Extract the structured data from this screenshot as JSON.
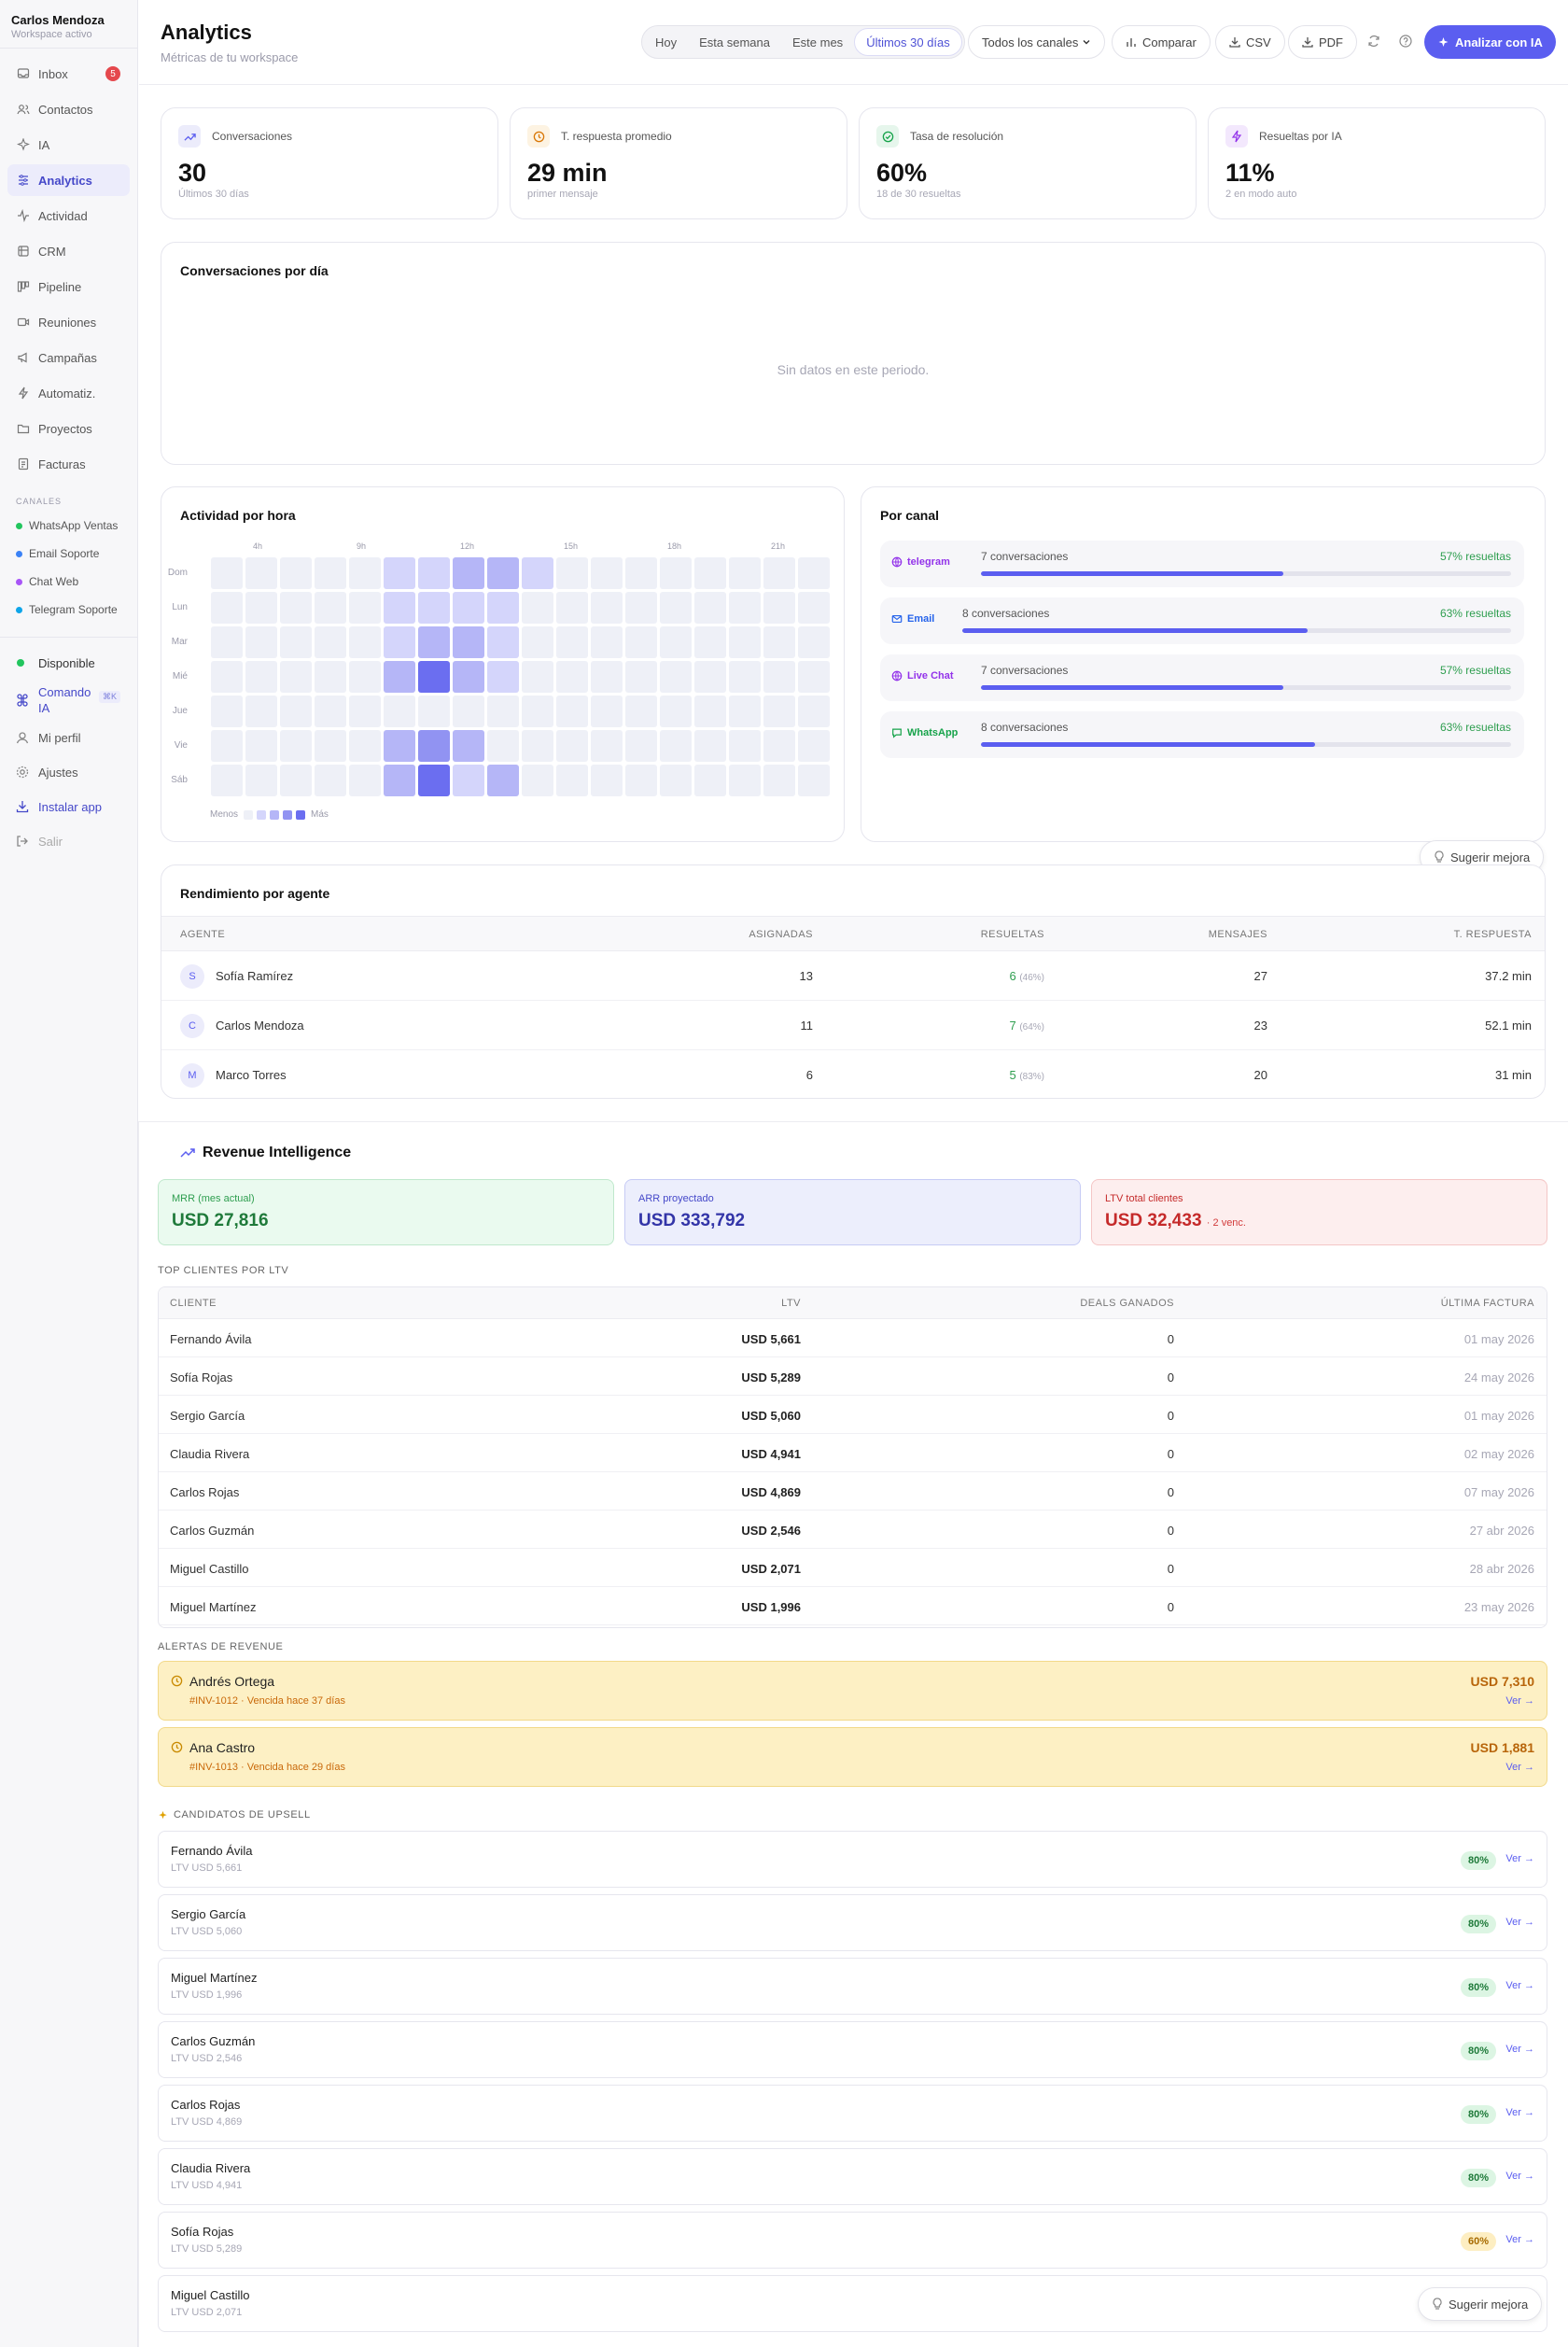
{
  "sidebar": {
    "user_name": "Carlos Mendoza",
    "workspace": "Workspace activo",
    "nav": [
      {
        "label": "Inbox",
        "icon": "inbox-icon",
        "badge": "5"
      },
      {
        "label": "Contactos",
        "icon": "contacts-icon"
      },
      {
        "label": "IA",
        "icon": "sparkle-icon"
      },
      {
        "label": "Analytics",
        "icon": "analytics-icon",
        "active": true
      },
      {
        "label": "Actividad",
        "icon": "activity-icon"
      },
      {
        "label": "CRM",
        "icon": "crm-icon"
      },
      {
        "label": "Pipeline",
        "icon": "pipeline-icon"
      },
      {
        "label": "Reuniones",
        "icon": "video-icon"
      },
      {
        "label": "Campañas",
        "icon": "megaphone-icon"
      },
      {
        "label": "Automatiz.",
        "icon": "bolt-icon"
      },
      {
        "label": "Proyectos",
        "icon": "folder-icon"
      },
      {
        "label": "Facturas",
        "icon": "invoice-icon"
      }
    ],
    "channels_label": "CANALES",
    "channels": [
      {
        "label": "WhatsApp Ventas",
        "color": "#22c55e"
      },
      {
        "label": "Email Soporte",
        "color": "#3b82f6"
      },
      {
        "label": "Chat Web",
        "color": "#a855f7"
      },
      {
        "label": "Telegram Soporte",
        "color": "#0ea5e9"
      }
    ],
    "status": "Disponible",
    "command": "Comando IA",
    "command_kbd": "⌘K",
    "profile": "Mi perfil",
    "settings": "Ajustes",
    "install": "Instalar app",
    "logout": "Salir"
  },
  "header": {
    "title": "Analytics",
    "subtitle": "Métricas de tu workspace",
    "ranges": [
      "Hoy",
      "Esta semana",
      "Este mes",
      "Últimos 30 días"
    ],
    "active_range": 3,
    "channel_select": "Todos los canales",
    "compare": "Comparar",
    "csv": "CSV",
    "pdf": "PDF",
    "ai_button": "Analizar con IA"
  },
  "kpis": [
    {
      "label": "Conversaciones",
      "value": "30",
      "sub": "Últimos 30 días",
      "icon": "trend-icon",
      "color": "#5b5ef0",
      "bg": "#ececfb"
    },
    {
      "label": "T. respuesta promedio",
      "value": "29 min",
      "sub": "primer mensaje",
      "icon": "clock-icon",
      "color": "#d97706",
      "bg": "#fdf3e2"
    },
    {
      "label": "Tasa de resolución",
      "value": "60%",
      "sub": "18 de 30 resueltas",
      "icon": "check-circle-icon",
      "color": "#16a34a",
      "bg": "#e6f6ec"
    },
    {
      "label": "Resueltas por IA",
      "value": "11%",
      "sub": "2 en modo auto",
      "icon": "bolt-icon",
      "color": "#9333ea",
      "bg": "#f3e8fd"
    }
  ],
  "conversations_chart": {
    "title": "Conversaciones por día",
    "empty": "Sin datos en este periodo."
  },
  "heatmap": {
    "title": "Actividad por hora",
    "hour_labels": [
      "4h",
      "9h",
      "12h",
      "15h",
      "18h",
      "21h"
    ],
    "days": [
      "Dom",
      "Lun",
      "Mar",
      "Mié",
      "Jue",
      "Vie",
      "Sáb"
    ],
    "legend_less": "Menos",
    "legend_more": "Más",
    "legend_colors": [
      "#eef0f7",
      "#d4d5fb",
      "#b5b6f7",
      "#9193f2",
      "#6b6ef0"
    ],
    "levels": [
      [
        0,
        0,
        0,
        0,
        0,
        1,
        1,
        2,
        2,
        1,
        0,
        0,
        0,
        0,
        0,
        0,
        0,
        0
      ],
      [
        0,
        0,
        0,
        0,
        0,
        1,
        1,
        1,
        1,
        0,
        0,
        0,
        0,
        0,
        0,
        0,
        0,
        0
      ],
      [
        0,
        0,
        0,
        0,
        0,
        1,
        2,
        2,
        1,
        0,
        0,
        0,
        0,
        0,
        0,
        0,
        0,
        0
      ],
      [
        0,
        0,
        0,
        0,
        0,
        2,
        4,
        2,
        1,
        0,
        0,
        0,
        0,
        0,
        0,
        0,
        0,
        0
      ],
      [
        0,
        0,
        0,
        0,
        0,
        0,
        0,
        0,
        0,
        0,
        0,
        0,
        0,
        0,
        0,
        0,
        0,
        0
      ],
      [
        0,
        0,
        0,
        0,
        0,
        2,
        3,
        2,
        0,
        0,
        0,
        0,
        0,
        0,
        0,
        0,
        0,
        0
      ],
      [
        0,
        0,
        0,
        0,
        0,
        2,
        4,
        1,
        2,
        0,
        0,
        0,
        0,
        0,
        0,
        0,
        0,
        0
      ]
    ]
  },
  "channels_card": {
    "title": "Por canal",
    "rows": [
      {
        "name": "telegram",
        "count": "7 conversaciones",
        "rate": "57% resueltas",
        "pct": 57,
        "color": "#9333ea",
        "icon": "globe-icon"
      },
      {
        "name": "Email",
        "count": "8 conversaciones",
        "rate": "63% resueltas",
        "pct": 63,
        "color": "#2563eb",
        "icon": "mail-icon"
      },
      {
        "name": "Live Chat",
        "count": "7 conversaciones",
        "rate": "57% resueltas",
        "pct": 57,
        "color": "#9333ea",
        "icon": "globe-icon"
      },
      {
        "name": "WhatsApp",
        "count": "8 conversaciones",
        "rate": "63% resueltas",
        "pct": 63,
        "color": "#16a34a",
        "icon": "chat-icon"
      }
    ]
  },
  "suggest": "Sugerir mejora",
  "agents": {
    "title": "Rendimiento por agente",
    "columns": [
      "AGENTE",
      "ASIGNADAS",
      "RESUELTAS",
      "MENSAJES",
      "T. RESPUESTA"
    ],
    "rows": [
      {
        "initial": "S",
        "name": "Sofía Ramírez",
        "assigned": "13",
        "resolved": "6",
        "pct": "(46%)",
        "messages": "27",
        "response": "37.2 min"
      },
      {
        "initial": "C",
        "name": "Carlos Mendoza",
        "assigned": "11",
        "resolved": "7",
        "pct": "(64%)",
        "messages": "23",
        "response": "52.1 min"
      },
      {
        "initial": "M",
        "name": "Marco Torres",
        "assigned": "6",
        "resolved": "5",
        "pct": "(83%)",
        "messages": "20",
        "response": "31 min"
      }
    ]
  },
  "revenue": {
    "title": "Revenue Intelligence",
    "mrr_label": "MRR (mes actual)",
    "mrr": "USD 27,816",
    "arr_label": "ARR proyectado",
    "arr": "USD 333,792",
    "ltv_label": "LTV total clientes",
    "ltv": "USD 32,433",
    "ltv_note": "· 2 venc.",
    "top_label": "TOP CLIENTES POR LTV",
    "top_columns": [
      "CLIENTE",
      "LTV",
      "DEALS GANADOS",
      "ÚLTIMA FACTURA"
    ],
    "top": [
      {
        "name": "Fernando Ávila",
        "ltv": "USD 5,661",
        "deals": "0",
        "date": "01 may 2026"
      },
      {
        "name": "Sofía Rojas",
        "ltv": "USD 5,289",
        "deals": "0",
        "date": "24 may 2026"
      },
      {
        "name": "Sergio García",
        "ltv": "USD 5,060",
        "deals": "0",
        "date": "01 may 2026"
      },
      {
        "name": "Claudia Rivera",
        "ltv": "USD 4,941",
        "deals": "0",
        "date": "02 may 2026"
      },
      {
        "name": "Carlos Rojas",
        "ltv": "USD 4,869",
        "deals": "0",
        "date": "07 may 2026"
      },
      {
        "name": "Carlos Guzmán",
        "ltv": "USD 2,546",
        "deals": "0",
        "date": "27 abr 2026"
      },
      {
        "name": "Miguel Castillo",
        "ltv": "USD 2,071",
        "deals": "0",
        "date": "28 abr 2026"
      },
      {
        "name": "Miguel Martínez",
        "ltv": "USD 1,996",
        "deals": "0",
        "date": "23 may 2026"
      }
    ],
    "alerts_label": "ALERTAS DE REVENUE",
    "alerts": [
      {
        "name": "Andrés Ortega",
        "sub": "#INV-1012 · Vencida hace 37 días",
        "amount": "USD 7,310",
        "link": "Ver →"
      },
      {
        "name": "Ana Castro",
        "sub": "#INV-1013 · Vencida hace 29 días",
        "amount": "USD 1,881",
        "link": "Ver →"
      }
    ],
    "upsell_label": "CANDIDATOS DE UPSELL",
    "upsell": [
      {
        "name": "Fernando Ávila",
        "sub": "LTV USD 5,661",
        "score": "80%",
        "link": "Ver →"
      },
      {
        "name": "Sergio García",
        "sub": "LTV USD 5,060",
        "score": "80%",
        "link": "Ver →"
      },
      {
        "name": "Miguel Martínez",
        "sub": "LTV USD 1,996",
        "score": "80%",
        "link": "Ver →"
      },
      {
        "name": "Carlos Guzmán",
        "sub": "LTV USD 2,546",
        "score": "80%",
        "link": "Ver →"
      },
      {
        "name": "Carlos Rojas",
        "sub": "LTV USD 4,869",
        "score": "80%",
        "link": "Ver →"
      },
      {
        "name": "Claudia Rivera",
        "sub": "LTV USD 4,941",
        "score": "80%",
        "link": "Ver →"
      },
      {
        "name": "Sofía Rojas",
        "sub": "LTV USD 5,289",
        "score": "60%",
        "link": "Ver →"
      },
      {
        "name": "Miguel Castillo",
        "sub": "LTV USD 2,071",
        "score": "",
        "link": ""
      }
    ]
  }
}
